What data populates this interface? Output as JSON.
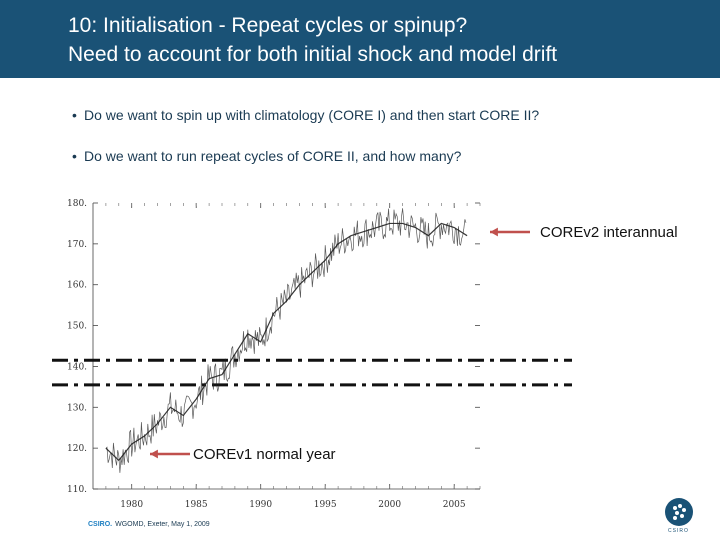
{
  "slide": {
    "title_line1": "10: Initialisation - Repeat cycles or spinup?",
    "title_line2": "Need to account for both initial shock and model drift",
    "bullets": [
      "Do we want to spin up with climatology (CORE I) and then start CORE II?",
      "Do we want to run repeat cycles of CORE II, and how many?"
    ],
    "bullet_glyph": "•",
    "footer_brand": "CSIRO.",
    "footer_text": "WGOMD, Exeter, May 1, 2009",
    "logo_text": "CSIRO"
  },
  "colors": {
    "header": "#1a5276",
    "line": "#222222",
    "arrow": "#c0504d"
  },
  "chart_data": {
    "type": "line",
    "title": "",
    "xlabel": "",
    "ylabel": "",
    "xlim": [
      1977,
      2007
    ],
    "ylim": [
      110,
      180
    ],
    "x_ticks": [
      1980,
      1985,
      1990,
      1995,
      2000,
      2005
    ],
    "y_tick_values": [
      180,
      170,
      160,
      150,
      140,
      130,
      120,
      110
    ],
    "y_tick_labels": [
      "180.",
      "170.",
      "160.",
      "150.",
      "140.",
      "130.",
      "120.",
      "110."
    ],
    "series": [
      {
        "name": "COREv2 interannual",
        "x": [
          1978,
          1979,
          1980,
          1981,
          1982,
          1983,
          1984,
          1985,
          1986,
          1987,
          1988,
          1989,
          1990,
          1991,
          1992,
          1993,
          1994,
          1995,
          1996,
          1997,
          1998,
          1999,
          2000,
          2001,
          2002,
          2003,
          2004,
          2005,
          2006
        ],
        "y": [
          120,
          117,
          121,
          123,
          126,
          130,
          128,
          132,
          137,
          138,
          143,
          148,
          146,
          153,
          156,
          160,
          163,
          166,
          170,
          172,
          173,
          174,
          175,
          175,
          174,
          172,
          175,
          174,
          172
        ]
      }
    ],
    "reference_lines": [
      {
        "name": "reference-dash-upper",
        "y": 141.5
      },
      {
        "name": "reference-dash-lower",
        "y": 135.5
      }
    ],
    "annotations": [
      {
        "text": "COREv2 interannual",
        "x": 2004.5,
        "y": 174
      },
      {
        "text": "COREv1 normal year",
        "x": 1980.5,
        "y": 120
      }
    ]
  }
}
